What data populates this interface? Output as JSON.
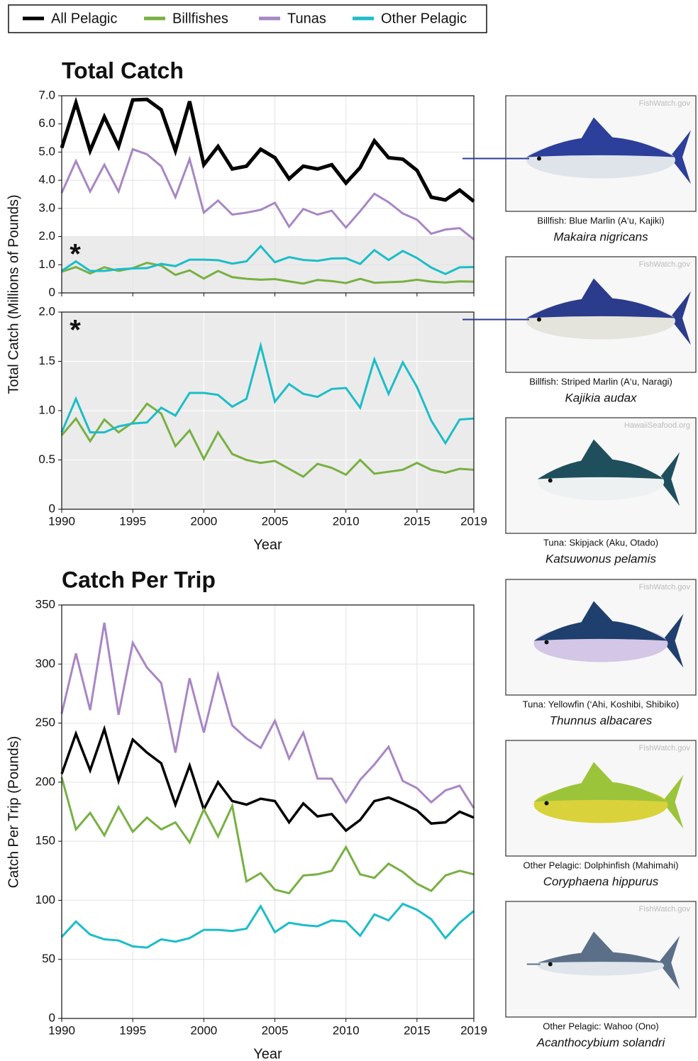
{
  "chart_data": [
    {
      "type": "line",
      "title": "Total Catch",
      "ylabel": "Total Catch (Millions of Pounds)",
      "annotation": "*",
      "shaded_band": [
        0,
        2
      ],
      "band_color": "#ebebeb",
      "grid": true,
      "x": [
        1990,
        1991,
        1992,
        1993,
        1994,
        1995,
        1996,
        1997,
        1998,
        1999,
        2000,
        2001,
        2002,
        2003,
        2004,
        2005,
        2006,
        2007,
        2008,
        2009,
        2010,
        2011,
        2012,
        2013,
        2014,
        2015,
        2016,
        2017,
        2018,
        2019
      ],
      "xlim": [
        1990,
        2019
      ],
      "xticks": [
        1990,
        1995,
        2000,
        2005,
        2010,
        2015,
        2019
      ],
      "ylim": [
        0,
        7
      ],
      "yticks": [
        0,
        {
          "value": 1,
          "label": "1.0"
        },
        {
          "value": 2,
          "label": "2.0"
        },
        {
          "value": 3,
          "label": "3.0"
        },
        {
          "value": 4,
          "label": "4.0"
        },
        {
          "value": 5,
          "label": "5.0"
        },
        {
          "value": 6,
          "label": "6.0"
        },
        {
          "value": 7,
          "label": "7.0"
        }
      ],
      "series": [
        {
          "name": "All Pelagic",
          "color": "#000000",
          "values": [
            5.15,
            6.75,
            5.05,
            6.25,
            5.2,
            6.85,
            6.87,
            6.5,
            5.05,
            6.8,
            4.55,
            5.2,
            4.4,
            4.5,
            5.1,
            4.8,
            4.05,
            4.5,
            4.4,
            4.55,
            3.9,
            4.45,
            5.4,
            4.8,
            4.75,
            4.35,
            3.4,
            3.3,
            3.65,
            3.25
          ]
        },
        {
          "name": "Billfishes",
          "color": "#78b043",
          "values": [
            0.75,
            0.92,
            0.69,
            0.91,
            0.78,
            0.88,
            1.07,
            0.97,
            0.64,
            0.8,
            0.51,
            0.78,
            0.56,
            0.5,
            0.47,
            0.49,
            0.41,
            0.33,
            0.46,
            0.42,
            0.35,
            0.5,
            0.36,
            0.38,
            0.4,
            0.47,
            0.4,
            0.37,
            0.41,
            0.4
          ]
        },
        {
          "name": "Tunas",
          "color": "#a886c4",
          "values": [
            3.55,
            4.68,
            3.6,
            4.55,
            3.6,
            5.1,
            4.92,
            4.5,
            3.4,
            4.75,
            2.85,
            3.28,
            2.78,
            2.85,
            2.95,
            3.2,
            2.35,
            2.98,
            2.78,
            2.92,
            2.32,
            2.9,
            3.52,
            3.22,
            2.82,
            2.6,
            2.1,
            2.25,
            2.3,
            1.9
          ]
        },
        {
          "name": "Other Pelagic",
          "color": "#1cbdc8",
          "values": [
            0.78,
            1.12,
            0.78,
            0.78,
            0.84,
            0.87,
            0.88,
            1.03,
            0.95,
            1.18,
            1.18,
            1.16,
            1.04,
            1.12,
            1.66,
            1.09,
            1.27,
            1.17,
            1.14,
            1.22,
            1.23,
            1.03,
            1.52,
            1.17,
            1.49,
            1.24,
            0.9,
            0.67,
            0.91,
            0.92
          ]
        }
      ]
    },
    {
      "type": "line",
      "xlabel": "Year",
      "annotation": "*",
      "background": "#ebebeb",
      "grid": true,
      "x": [
        1990,
        1991,
        1992,
        1993,
        1994,
        1995,
        1996,
        1997,
        1998,
        1999,
        2000,
        2001,
        2002,
        2003,
        2004,
        2005,
        2006,
        2007,
        2008,
        2009,
        2010,
        2011,
        2012,
        2013,
        2014,
        2015,
        2016,
        2017,
        2018,
        2019
      ],
      "xlim": [
        1990,
        2019
      ],
      "xticks": [
        1990,
        1995,
        2000,
        2005,
        2010,
        2015,
        2019
      ],
      "ylim": [
        0,
        2
      ],
      "yticks": [
        0,
        0.5,
        {
          "value": 1,
          "label": "1.0"
        },
        1.5,
        {
          "value": 2,
          "label": "2.0"
        }
      ],
      "series": [
        {
          "color": "#78b043",
          "values": [
            0.75,
            0.92,
            0.69,
            0.91,
            0.78,
            0.88,
            1.07,
            0.97,
            0.64,
            0.8,
            0.51,
            0.78,
            0.56,
            0.5,
            0.47,
            0.49,
            0.41,
            0.33,
            0.46,
            0.42,
            0.35,
            0.5,
            0.36,
            0.38,
            0.4,
            0.47,
            0.4,
            0.37,
            0.41,
            0.4
          ]
        },
        {
          "color": "#1cbdc8",
          "values": [
            0.78,
            1.12,
            0.78,
            0.78,
            0.84,
            0.87,
            0.88,
            1.03,
            0.95,
            1.18,
            1.18,
            1.16,
            1.04,
            1.12,
            1.66,
            1.09,
            1.27,
            1.17,
            1.14,
            1.22,
            1.23,
            1.03,
            1.52,
            1.17,
            1.49,
            1.24,
            0.9,
            0.67,
            0.91,
            0.92
          ]
        }
      ]
    },
    {
      "type": "line",
      "title": "Catch Per Trip",
      "xlabel": "Year",
      "ylabel": "Catch Per Trip (Pounds)",
      "grid": true,
      "x": [
        1990,
        1991,
        1992,
        1993,
        1994,
        1995,
        1996,
        1997,
        1998,
        1999,
        2000,
        2001,
        2002,
        2003,
        2004,
        2005,
        2006,
        2007,
        2008,
        2009,
        2010,
        2011,
        2012,
        2013,
        2014,
        2015,
        2016,
        2017,
        2018,
        2019
      ],
      "xlim": [
        1990,
        2019
      ],
      "xticks": [
        1990,
        1995,
        2000,
        2005,
        2010,
        2015,
        2019
      ],
      "ylim": [
        0,
        350
      ],
      "yticks": [
        0,
        50,
        100,
        150,
        200,
        250,
        300,
        350
      ],
      "series": [
        {
          "color": "#000000",
          "values": [
            207,
            241,
            210,
            245,
            201,
            236,
            225,
            216,
            181,
            214,
            177,
            200,
            184,
            181,
            186,
            184,
            166,
            182,
            171,
            173,
            159,
            168,
            184,
            187,
            182,
            176,
            165,
            166,
            175,
            170
          ]
        },
        {
          "color": "#78b043",
          "values": [
            204,
            160,
            174,
            155,
            179,
            158,
            170,
            160,
            166,
            149,
            177,
            154,
            180,
            116,
            123,
            109,
            106,
            121,
            122,
            125,
            145,
            122,
            119,
            131,
            124,
            114,
            108,
            121,
            125,
            122
          ]
        },
        {
          "color": "#a886c4",
          "values": [
            258,
            309,
            261,
            335,
            257,
            318,
            297,
            284,
            225,
            288,
            242,
            291,
            248,
            237,
            229,
            252,
            220,
            242,
            203,
            203,
            183,
            202,
            215,
            230,
            201,
            195,
            183,
            193,
            197,
            178
          ]
        },
        {
          "color": "#1cbdc8",
          "values": [
            69,
            82,
            71,
            67,
            66,
            61,
            60,
            67,
            65,
            68,
            75,
            75,
            74,
            76,
            95,
            73,
            81,
            79,
            78,
            83,
            82,
            70,
            88,
            83,
            97,
            92,
            84,
            68,
            81,
            91
          ]
        }
      ]
    }
  ],
  "images": [
    {
      "credit": "FishWatch.gov",
      "caption": "Billfish: Blue Marlin (A‘u, Kajiki)",
      "species": "Makaira nigricans"
    },
    {
      "credit": "FishWatch.gov",
      "caption": "Billfish: Striped Marlin (A‘u, Naragi)",
      "species": "Kajikia audax"
    },
    {
      "credit": "HawaiiSeafood.org",
      "caption": "Tuna: Skipjack (Aku, Otado)",
      "species": "Katsuwonus pelamis"
    },
    {
      "credit": "FishWatch.gov",
      "caption": "Tuna: Yellowfin (‘Ahi, Koshibi, Shibiko)",
      "species": "Thunnus albacares"
    },
    {
      "credit": "FishWatch.gov",
      "caption": "Other Pelagic: Dolphinfish (Mahimahi)",
      "species": "Coryphaena hippurus"
    },
    {
      "credit": "FishWatch.gov",
      "caption": "Other Pelagic: Wahoo (Ono)",
      "species": "Acanthocybium solandri"
    }
  ]
}
